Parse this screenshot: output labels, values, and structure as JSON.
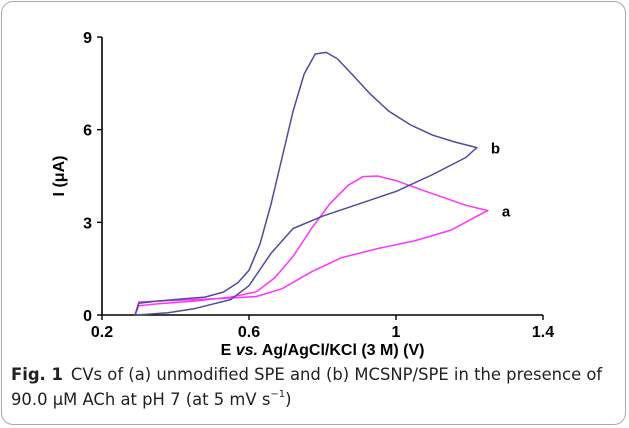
{
  "chart_data": {
    "type": "line",
    "xlabel_prefix": "E ",
    "xlabel_italic": "vs.",
    "xlabel_suffix": " Ag/AgCl/KCl (3 M) (V)",
    "ylabel": "I (μA)",
    "xlim": [
      0.2,
      1.4
    ],
    "ylim": [
      0,
      9
    ],
    "x_ticks": [
      "0.2",
      "0.6",
      "1",
      "1.4"
    ],
    "y_ticks": [
      "0",
      "3",
      "6",
      "9"
    ],
    "grid": false,
    "series": [
      {
        "name": "a",
        "color": "#ff33ff",
        "points": [
          [
            0.29,
            0.0
          ],
          [
            0.3,
            0.3
          ],
          [
            0.35,
            0.36
          ],
          [
            0.45,
            0.45
          ],
          [
            0.55,
            0.58
          ],
          [
            0.62,
            0.75
          ],
          [
            0.67,
            1.2
          ],
          [
            0.72,
            1.9
          ],
          [
            0.77,
            2.8
          ],
          [
            0.82,
            3.6
          ],
          [
            0.87,
            4.2
          ],
          [
            0.91,
            4.48
          ],
          [
            0.95,
            4.5
          ],
          [
            1.0,
            4.35
          ],
          [
            1.07,
            4.05
          ],
          [
            1.13,
            3.8
          ],
          [
            1.19,
            3.55
          ],
          [
            1.25,
            3.38
          ],
          [
            1.22,
            3.2
          ],
          [
            1.15,
            2.75
          ],
          [
            1.05,
            2.4
          ],
          [
            0.95,
            2.15
          ],
          [
            0.85,
            1.85
          ],
          [
            0.77,
            1.4
          ],
          [
            0.69,
            0.85
          ],
          [
            0.62,
            0.6
          ],
          [
            0.55,
            0.55
          ],
          [
            0.45,
            0.5
          ],
          [
            0.35,
            0.45
          ],
          [
            0.3,
            0.42
          ],
          [
            0.29,
            0.0
          ]
        ]
      },
      {
        "name": "b",
        "color": "#4d4d99",
        "points": [
          [
            0.29,
            0.0
          ],
          [
            0.3,
            0.38
          ],
          [
            0.35,
            0.45
          ],
          [
            0.42,
            0.52
          ],
          [
            0.48,
            0.58
          ],
          [
            0.53,
            0.74
          ],
          [
            0.57,
            1.05
          ],
          [
            0.6,
            1.45
          ],
          [
            0.63,
            2.3
          ],
          [
            0.66,
            3.6
          ],
          [
            0.69,
            5.1
          ],
          [
            0.72,
            6.6
          ],
          [
            0.75,
            7.8
          ],
          [
            0.78,
            8.45
          ],
          [
            0.81,
            8.5
          ],
          [
            0.84,
            8.3
          ],
          [
            0.88,
            7.8
          ],
          [
            0.93,
            7.15
          ],
          [
            0.98,
            6.6
          ],
          [
            1.04,
            6.15
          ],
          [
            1.1,
            5.82
          ],
          [
            1.16,
            5.6
          ],
          [
            1.22,
            5.42
          ],
          [
            1.19,
            5.1
          ],
          [
            1.1,
            4.55
          ],
          [
            1.0,
            4.0
          ],
          [
            0.9,
            3.6
          ],
          [
            0.8,
            3.2
          ],
          [
            0.72,
            2.8
          ],
          [
            0.66,
            2.0
          ],
          [
            0.6,
            0.95
          ],
          [
            0.55,
            0.5
          ],
          [
            0.5,
            0.35
          ],
          [
            0.45,
            0.2
          ],
          [
            0.38,
            0.07
          ],
          [
            0.32,
            0.02
          ],
          [
            0.29,
            0.0
          ]
        ]
      }
    ]
  },
  "caption": {
    "fig_label": "Fig. 1",
    "text_before_sup": "CVs of (a) unmodified SPE and (b) MCSNP/SPE in the presence of 90.0 μM ACh at pH 7 (at 5 mV s",
    "sup": "−1",
    "text_after_sup": ")"
  }
}
